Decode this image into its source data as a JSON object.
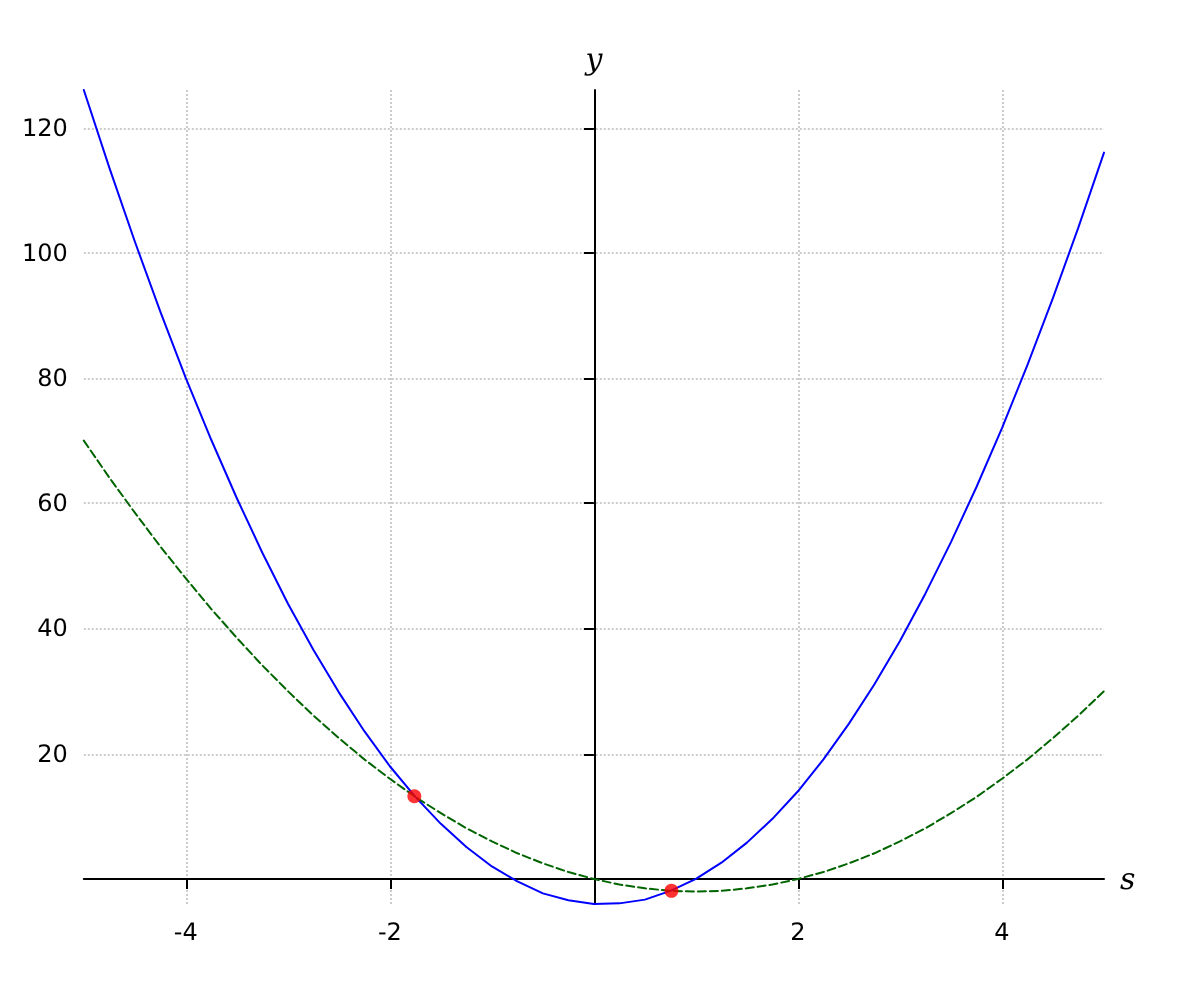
{
  "chart_data": {
    "type": "line",
    "xlabel": "s",
    "ylabel": "y",
    "xlim": [
      -5,
      5
    ],
    "ylim": [
      -4,
      126
    ],
    "xticks": [
      -4,
      -2,
      2,
      4
    ],
    "yticks": [
      20,
      40,
      60,
      80,
      100,
      120
    ],
    "grid": true,
    "x": [
      -5,
      -4.75,
      -4.5,
      -4.25,
      -4,
      -3.75,
      -3.5,
      -3.25,
      -3,
      -2.75,
      -2.5,
      -2.25,
      -2,
      -1.75,
      -1.5,
      -1.25,
      -1,
      -0.75,
      -0.5,
      -0.25,
      0,
      0.25,
      0.5,
      0.75,
      1,
      1.25,
      1.5,
      1.75,
      2,
      2.25,
      2.5,
      2.75,
      3,
      3.25,
      3.5,
      3.75,
      4,
      4.25,
      4.5,
      4.75,
      5
    ],
    "series": [
      {
        "color": "#0000ff",
        "line_style": "solid",
        "values": [
          126,
          113.6,
          101.8,
          90.6,
          80,
          70.1,
          60.8,
          52.1,
          44,
          36.6,
          29.8,
          23.6,
          18,
          13.1,
          8.8,
          5.1,
          2,
          -0.4,
          -2.3,
          -3.4,
          -4,
          -3.9,
          -3.3,
          -1.9,
          0,
          2.6,
          5.8,
          9.6,
          14,
          19.1,
          24.8,
          31.1,
          38,
          45.6,
          53.8,
          62.6,
          72,
          82.1,
          92.8,
          104.1,
          116
        ]
      },
      {
        "color": "#006400",
        "line_style": "dashed",
        "values": [
          70,
          64.1,
          58.5,
          53.1,
          48,
          43.1,
          38.5,
          34.1,
          30,
          26.1,
          22.5,
          19.1,
          16,
          13.1,
          10.5,
          8.1,
          6,
          4.1,
          2.5,
          1.1,
          0,
          -0.9,
          -1.5,
          -1.9,
          -2,
          -1.9,
          -1.5,
          -0.9,
          0,
          1.1,
          2.5,
          4.1,
          6,
          8.1,
          10.5,
          13.1,
          16,
          19.1,
          22.5,
          26.1,
          30
        ]
      },
      {
        "type": "scatter",
        "color": "#ff0000",
        "marker": "circle",
        "x": [
          -1.76,
          0.76
        ],
        "values": [
          13.2,
          -1.9
        ]
      }
    ]
  }
}
